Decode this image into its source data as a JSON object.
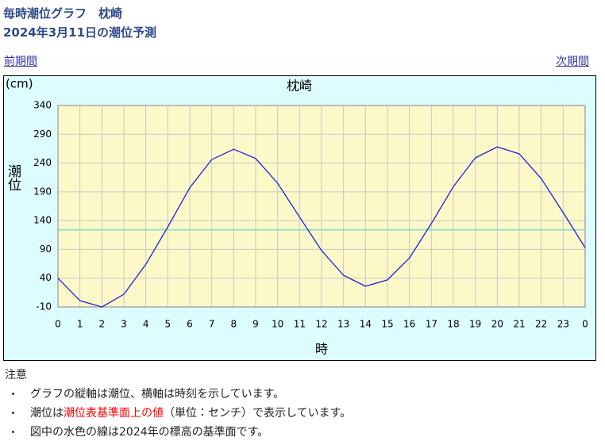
{
  "header": {
    "title": "毎時潮位グラフ　枕崎",
    "subtitle": "2024年3月11日の潮位予測"
  },
  "nav": {
    "prev": "前期間",
    "next": "次期間"
  },
  "chart_data": {
    "type": "line",
    "title": "枕崎",
    "y_unit": "(cm)",
    "y_label": "潮位",
    "x_label": "時",
    "categories": [
      "0",
      "1",
      "2",
      "3",
      "4",
      "5",
      "6",
      "7",
      "8",
      "9",
      "10",
      "11",
      "12",
      "13",
      "14",
      "15",
      "16",
      "17",
      "18",
      "19",
      "20",
      "21",
      "22",
      "23",
      "0"
    ],
    "series": [
      {
        "color": "#2020e0",
        "values": [
          40,
          1,
          -10,
          12,
          64,
          129,
          197,
          246,
          264,
          248,
          205,
          146,
          88,
          45,
          26,
          37,
          75,
          135,
          199,
          249,
          268,
          256,
          213,
          154,
          93
        ]
      }
    ],
    "reference_line": {
      "value": 124,
      "color": "#80e0c8"
    },
    "ylim": [
      -10,
      340
    ],
    "yticks": [
      -10,
      40,
      90,
      140,
      190,
      240,
      290,
      340
    ],
    "grid": true
  },
  "notes": {
    "heading": "注意",
    "items": [
      [
        {
          "text": "グラフの縦軸は潮位、横軸は時刻を示しています。"
        }
      ],
      [
        {
          "text": "潮位は"
        },
        {
          "text": "潮位表基準面上の値",
          "color": "#ff0000"
        },
        {
          "text": "（単位：センチ）で表示しています。"
        }
      ],
      [
        {
          "text": "図中の水色の線は2024年の標高の基準面です。"
        }
      ]
    ]
  }
}
